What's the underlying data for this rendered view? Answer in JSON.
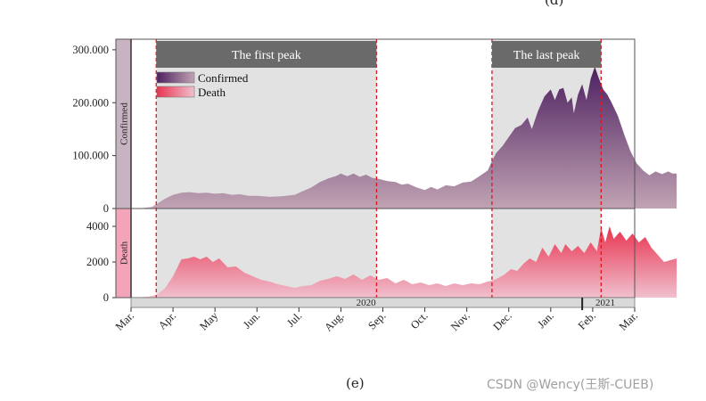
{
  "panel_labels": {
    "top": "(d)",
    "bottom": "(e)"
  },
  "watermark": "CSDN @Wency(王斯-CUEB)",
  "chart_data": {
    "type": "area",
    "title": "",
    "x_months": [
      "Mar.",
      "Apr.",
      "May",
      "Jun.",
      "Jul.",
      "Aug.",
      "Sep.",
      "Oct.",
      "Nov.",
      "Dec.",
      "Jan.",
      "Feb.",
      "Mar."
    ],
    "year_labels": [
      {
        "label": "2020",
        "month_index": 5.6
      },
      {
        "label": "2021",
        "month_index": 11.3
      }
    ],
    "year_break_month_index": 10.75,
    "peaks": [
      {
        "label": "The first peak",
        "start": 0.6,
        "end": 5.85
      },
      {
        "label": "The last peak",
        "start": 8.6,
        "end": 11.2
      }
    ],
    "legend": [
      "Confirmed",
      "Death"
    ],
    "panels": [
      {
        "name": "Confirmed",
        "ylabel": "Confirmed",
        "ylim": [
          0,
          320000
        ],
        "yticks": [
          0,
          100000,
          200000,
          300000
        ],
        "ytick_labels": [
          "0",
          "100.000",
          "200.000",
          "300.000"
        ],
        "color_top": "#4d2060",
        "color_bottom": "#c0a3b3",
        "side_color": "#c8b3c2",
        "series": [
          [
            0,
            0
          ],
          [
            0.3,
            1000
          ],
          [
            0.5,
            3000
          ],
          [
            0.6,
            8000
          ],
          [
            0.8,
            18000
          ],
          [
            1.0,
            26000
          ],
          [
            1.2,
            30000
          ],
          [
            1.4,
            31000
          ],
          [
            1.6,
            29000
          ],
          [
            1.8,
            30000
          ],
          [
            2.0,
            28000
          ],
          [
            2.2,
            29000
          ],
          [
            2.4,
            26000
          ],
          [
            2.6,
            27000
          ],
          [
            2.8,
            24000
          ],
          [
            3.0,
            24000
          ],
          [
            3.3,
            22000
          ],
          [
            3.6,
            23000
          ],
          [
            3.9,
            26000
          ],
          [
            4.1,
            33000
          ],
          [
            4.3,
            40000
          ],
          [
            4.5,
            50000
          ],
          [
            4.7,
            57000
          ],
          [
            4.9,
            62000
          ],
          [
            5.0,
            66000
          ],
          [
            5.15,
            61000
          ],
          [
            5.3,
            66000
          ],
          [
            5.45,
            60000
          ],
          [
            5.6,
            64000
          ],
          [
            5.75,
            58000
          ],
          [
            5.9,
            56000
          ],
          [
            6.1,
            52000
          ],
          [
            6.3,
            50000
          ],
          [
            6.45,
            45000
          ],
          [
            6.6,
            47000
          ],
          [
            6.8,
            40000
          ],
          [
            7.0,
            35000
          ],
          [
            7.15,
            41000
          ],
          [
            7.3,
            36000
          ],
          [
            7.5,
            44000
          ],
          [
            7.7,
            42000
          ],
          [
            7.9,
            49000
          ],
          [
            8.1,
            51000
          ],
          [
            8.3,
            61000
          ],
          [
            8.5,
            72000
          ],
          [
            8.6,
            90000
          ],
          [
            8.7,
            105000
          ],
          [
            8.85,
            118000
          ],
          [
            9.0,
            135000
          ],
          [
            9.15,
            152000
          ],
          [
            9.3,
            158000
          ],
          [
            9.45,
            172000
          ],
          [
            9.55,
            150000
          ],
          [
            9.7,
            185000
          ],
          [
            9.85,
            212000
          ],
          [
            10.0,
            225000
          ],
          [
            10.1,
            205000
          ],
          [
            10.2,
            225000
          ],
          [
            10.3,
            228000
          ],
          [
            10.4,
            200000
          ],
          [
            10.5,
            210000
          ],
          [
            10.55,
            180000
          ],
          [
            10.65,
            215000
          ],
          [
            10.75,
            235000
          ],
          [
            10.85,
            205000
          ],
          [
            10.95,
            245000
          ],
          [
            11.05,
            268000
          ],
          [
            11.15,
            245000
          ],
          [
            11.25,
            225000
          ],
          [
            11.35,
            215000
          ],
          [
            11.45,
            200000
          ],
          [
            11.6,
            175000
          ],
          [
            11.75,
            140000
          ],
          [
            11.9,
            108000
          ],
          [
            12.05,
            85000
          ],
          [
            12.2,
            72000
          ],
          [
            12.35,
            63000
          ],
          [
            12.5,
            70000
          ],
          [
            12.65,
            65000
          ],
          [
            12.8,
            70000
          ],
          [
            12.9,
            66000
          ],
          [
            13.0,
            66000
          ]
        ]
      },
      {
        "name": "Death",
        "ylabel": "Death",
        "ylim": [
          0,
          5000
        ],
        "yticks": [
          0,
          2000,
          4000
        ],
        "ytick_labels": [
          "0",
          "2000",
          "4000"
        ],
        "color_top": "#e8334f",
        "color_bottom": "#f0c0ce",
        "side_color": "#f4a4b8",
        "series": [
          [
            0,
            0
          ],
          [
            0.4,
            50
          ],
          [
            0.6,
            150
          ],
          [
            0.8,
            500
          ],
          [
            1.0,
            1200
          ],
          [
            1.2,
            2150
          ],
          [
            1.35,
            2200
          ],
          [
            1.5,
            2300
          ],
          [
            1.65,
            2150
          ],
          [
            1.8,
            2300
          ],
          [
            1.95,
            2000
          ],
          [
            2.1,
            2200
          ],
          [
            2.3,
            1700
          ],
          [
            2.5,
            1750
          ],
          [
            2.7,
            1400
          ],
          [
            2.9,
            1200
          ],
          [
            3.1,
            1000
          ],
          [
            3.3,
            900
          ],
          [
            3.5,
            750
          ],
          [
            3.7,
            650
          ],
          [
            3.9,
            550
          ],
          [
            4.1,
            650
          ],
          [
            4.3,
            700
          ],
          [
            4.5,
            950
          ],
          [
            4.7,
            1050
          ],
          [
            4.9,
            1200
          ],
          [
            5.1,
            1050
          ],
          [
            5.3,
            1300
          ],
          [
            5.5,
            1000
          ],
          [
            5.7,
            1250
          ],
          [
            5.9,
            1000
          ],
          [
            6.1,
            1100
          ],
          [
            6.3,
            800
          ],
          [
            6.5,
            1000
          ],
          [
            6.7,
            750
          ],
          [
            6.9,
            850
          ],
          [
            7.1,
            700
          ],
          [
            7.3,
            800
          ],
          [
            7.5,
            650
          ],
          [
            7.7,
            800
          ],
          [
            7.9,
            700
          ],
          [
            8.1,
            800
          ],
          [
            8.3,
            750
          ],
          [
            8.5,
            900
          ],
          [
            8.6,
            950
          ],
          [
            8.75,
            1100
          ],
          [
            8.9,
            1300
          ],
          [
            9.05,
            1600
          ],
          [
            9.2,
            1500
          ],
          [
            9.35,
            1900
          ],
          [
            9.5,
            2200
          ],
          [
            9.65,
            2000
          ],
          [
            9.8,
            2800
          ],
          [
            9.95,
            2300
          ],
          [
            10.1,
            3000
          ],
          [
            10.25,
            2500
          ],
          [
            10.35,
            3000
          ],
          [
            10.5,
            2600
          ],
          [
            10.65,
            2900
          ],
          [
            10.8,
            2500
          ],
          [
            10.95,
            3100
          ],
          [
            11.1,
            2600
          ],
          [
            11.2,
            3900
          ],
          [
            11.3,
            3100
          ],
          [
            11.4,
            4000
          ],
          [
            11.5,
            3300
          ],
          [
            11.65,
            3700
          ],
          [
            11.8,
            3200
          ],
          [
            11.95,
            3600
          ],
          [
            12.1,
            3100
          ],
          [
            12.25,
            3400
          ],
          [
            12.4,
            2800
          ],
          [
            12.55,
            2400
          ],
          [
            12.7,
            2000
          ],
          [
            12.85,
            2100
          ],
          [
            13.0,
            2200
          ]
        ]
      }
    ]
  }
}
